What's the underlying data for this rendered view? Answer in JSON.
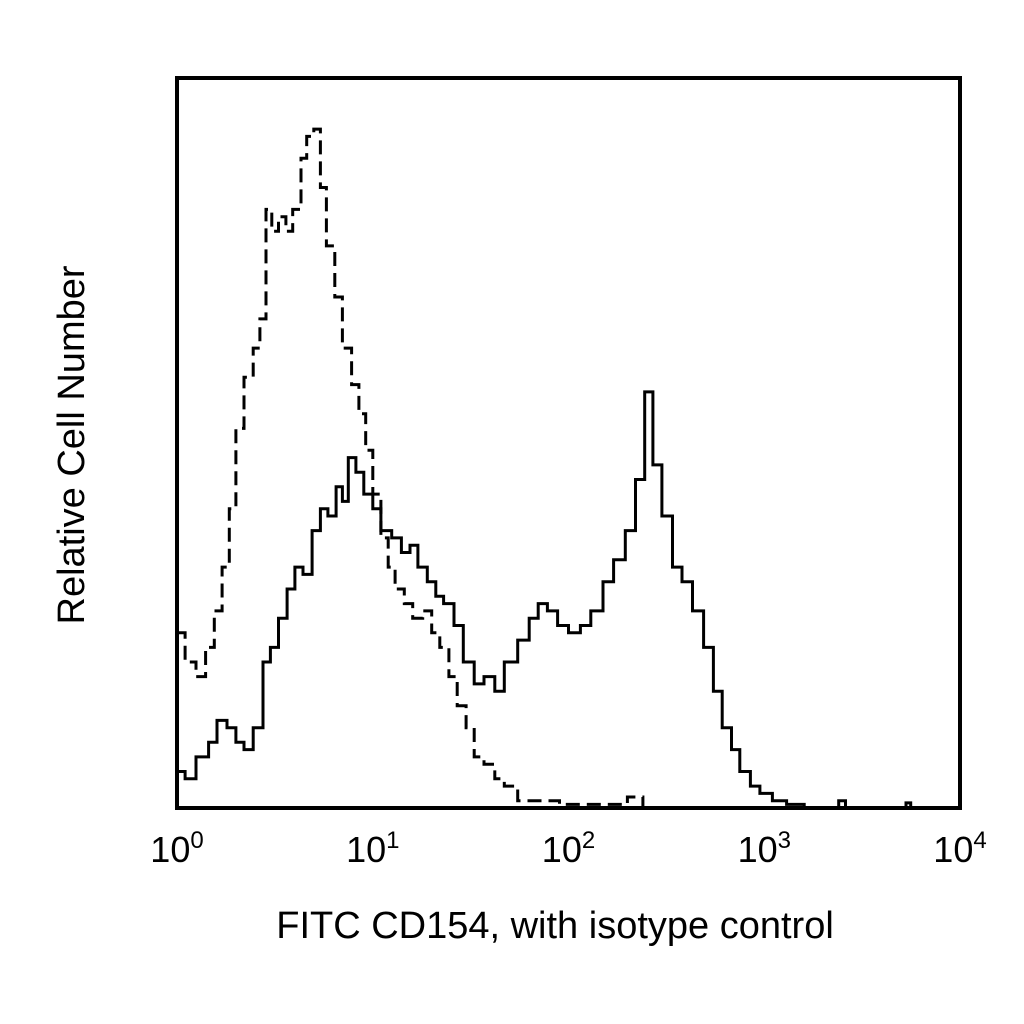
{
  "chart_data": {
    "type": "line",
    "title": "",
    "xlabel": "FITC CD154, with isotype control",
    "ylabel": "Relative Cell Number",
    "x_scale": "log",
    "xlim": [
      1,
      10000
    ],
    "ylim": [
      0,
      100
    ],
    "grid": false,
    "legend": "none",
    "x_ticks": [
      {
        "base": "10",
        "exp": "0",
        "value": 1
      },
      {
        "base": "10",
        "exp": "1",
        "value": 10
      },
      {
        "base": "10",
        "exp": "2",
        "value": 100
      },
      {
        "base": "10",
        "exp": "3",
        "value": 1000
      },
      {
        "base": "10",
        "exp": "4",
        "value": 10000
      }
    ],
    "series": [
      {
        "style": "dashed",
        "color": "#000000",
        "points": [
          [
            1.0,
            24
          ],
          [
            1.1,
            20
          ],
          [
            1.25,
            18
          ],
          [
            1.4,
            22
          ],
          [
            1.55,
            27
          ],
          [
            1.7,
            33
          ],
          [
            1.85,
            41
          ],
          [
            2.0,
            52
          ],
          [
            2.2,
            59
          ],
          [
            2.45,
            63
          ],
          [
            2.65,
            67
          ],
          [
            2.85,
            82
          ],
          [
            3.05,
            79
          ],
          [
            3.3,
            81
          ],
          [
            3.6,
            79
          ],
          [
            3.9,
            82
          ],
          [
            4.3,
            89
          ],
          [
            4.6,
            92
          ],
          [
            5.0,
            93
          ],
          [
            5.4,
            85
          ],
          [
            5.8,
            77
          ],
          [
            6.4,
            70
          ],
          [
            7.0,
            63
          ],
          [
            7.8,
            58
          ],
          [
            8.5,
            54
          ],
          [
            9.2,
            49
          ],
          [
            10.0,
            43
          ],
          [
            11.0,
            37
          ],
          [
            12.0,
            33
          ],
          [
            13.0,
            30
          ],
          [
            14.5,
            28
          ],
          [
            16.0,
            26
          ],
          [
            18.0,
            27
          ],
          [
            20.0,
            24
          ],
          [
            22.0,
            22
          ],
          [
            24.5,
            18
          ],
          [
            27.0,
            14
          ],
          [
            30.0,
            11
          ],
          [
            33.0,
            7
          ],
          [
            37.0,
            6
          ],
          [
            42.0,
            4
          ],
          [
            47.0,
            3
          ],
          [
            55.0,
            1
          ],
          [
            70.0,
            1
          ],
          [
            90.0,
            0.5
          ],
          [
            120.0,
            0.5
          ],
          [
            160.0,
            0.5
          ],
          [
            200.0,
            1.5
          ],
          [
            240.0,
            0
          ],
          [
            1000.0,
            0
          ],
          [
            10000.0,
            0
          ]
        ]
      },
      {
        "style": "solid",
        "color": "#000000",
        "points": [
          [
            1.0,
            5
          ],
          [
            1.1,
            4
          ],
          [
            1.25,
            7
          ],
          [
            1.45,
            9
          ],
          [
            1.6,
            12
          ],
          [
            1.8,
            11
          ],
          [
            2.0,
            9
          ],
          [
            2.2,
            8
          ],
          [
            2.45,
            11
          ],
          [
            2.75,
            20
          ],
          [
            3.0,
            22
          ],
          [
            3.3,
            26
          ],
          [
            3.65,
            30
          ],
          [
            4.0,
            33
          ],
          [
            4.4,
            32
          ],
          [
            4.9,
            38
          ],
          [
            5.4,
            41
          ],
          [
            5.9,
            40
          ],
          [
            6.5,
            44
          ],
          [
            7.0,
            42
          ],
          [
            7.5,
            48
          ],
          [
            8.2,
            46
          ],
          [
            9.0,
            43
          ],
          [
            10.0,
            41
          ],
          [
            11.0,
            38
          ],
          [
            12.5,
            37
          ],
          [
            14.0,
            35
          ],
          [
            15.5,
            36
          ],
          [
            17.0,
            33
          ],
          [
            19.0,
            31
          ],
          [
            21.0,
            29
          ],
          [
            23.0,
            28
          ],
          [
            26.0,
            25
          ],
          [
            29.0,
            20
          ],
          [
            33.0,
            17
          ],
          [
            37.0,
            18
          ],
          [
            42.0,
            16
          ],
          [
            47.0,
            20
          ],
          [
            55.0,
            23
          ],
          [
            63.0,
            26
          ],
          [
            70.0,
            28
          ],
          [
            78.0,
            27
          ],
          [
            88.0,
            25
          ],
          [
            100.0,
            24
          ],
          [
            115.0,
            25
          ],
          [
            130.0,
            27
          ],
          [
            150.0,
            31
          ],
          [
            170.0,
            34
          ],
          [
            195.0,
            38
          ],
          [
            220.0,
            45
          ],
          [
            245.0,
            57
          ],
          [
            270.0,
            47
          ],
          [
            300.0,
            40
          ],
          [
            340.0,
            33
          ],
          [
            380.0,
            31
          ],
          [
            430.0,
            27
          ],
          [
            490.0,
            22
          ],
          [
            550.0,
            16
          ],
          [
            610.0,
            11
          ],
          [
            680.0,
            8
          ],
          [
            750.0,
            5
          ],
          [
            850.0,
            3
          ],
          [
            950.0,
            2
          ],
          [
            1100.0,
            1
          ],
          [
            1300.0,
            0.5
          ],
          [
            1600.0,
            0
          ],
          [
            2200.0,
            0
          ],
          [
            2400.0,
            1
          ],
          [
            2600.0,
            0
          ],
          [
            5000.0,
            0
          ],
          [
            5300.0,
            0.7
          ],
          [
            5600.0,
            0
          ],
          [
            10000.0,
            0
          ]
        ]
      }
    ]
  }
}
